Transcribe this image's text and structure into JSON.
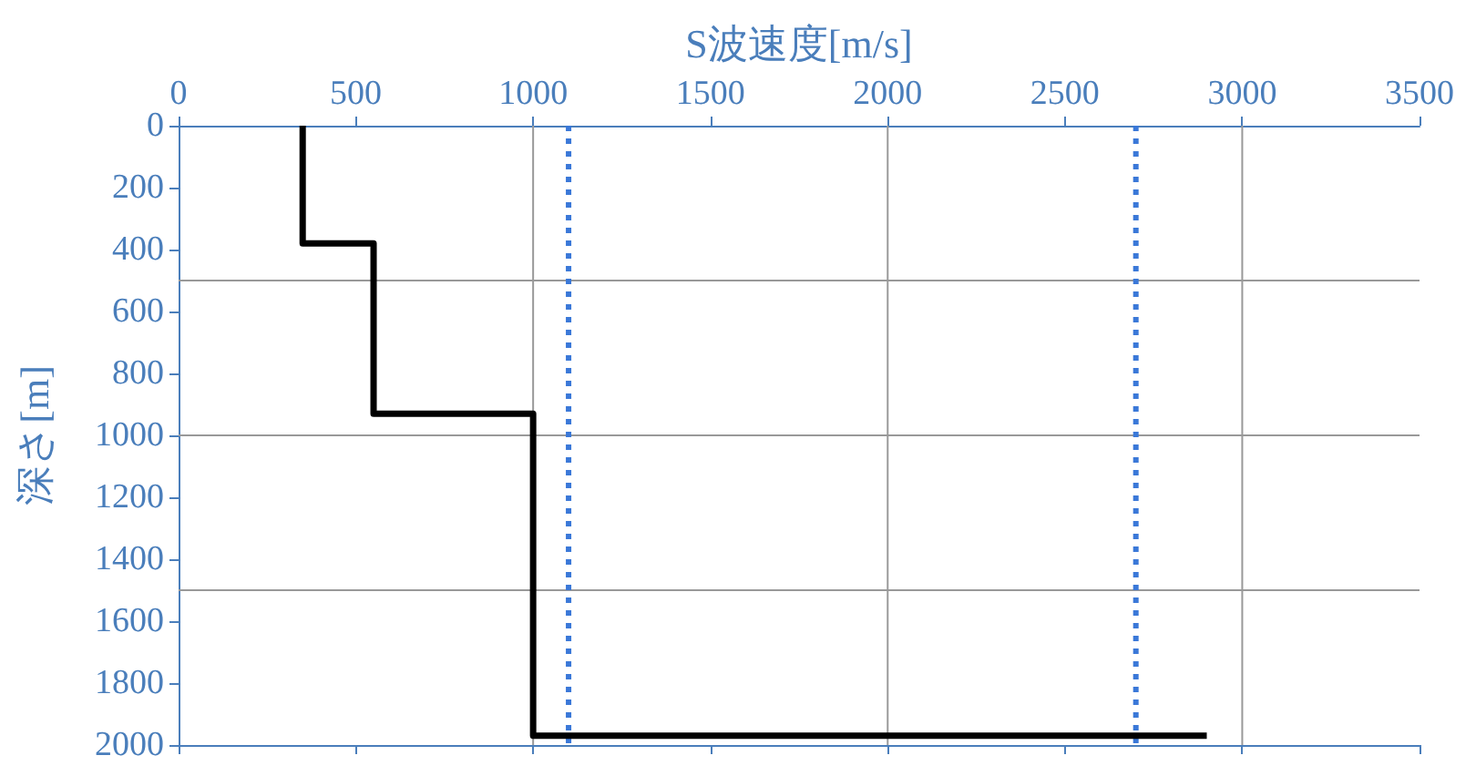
{
  "chart_data": {
    "type": "line",
    "xlabel": "S波速度[m/s]",
    "ylabel": "深さ[m]",
    "series": [
      {
        "color": "#000000",
        "x": [
          350,
          350,
          550,
          550,
          1000,
          1000,
          2900
        ],
        "values": [
          0,
          380,
          380,
          930,
          930,
          1970,
          1970
        ]
      }
    ],
    "xlim": [
      0,
      3500
    ],
    "xticks": [
      0,
      500,
      1000,
      1500,
      2000,
      2500,
      3000,
      3500
    ],
    "ylim": [
      2000,
      0
    ],
    "yticks": [
      0,
      200,
      400,
      600,
      800,
      1000,
      1200,
      1400,
      1600,
      1800,
      2000
    ],
    "ref_lines": [
      {
        "axis": "x",
        "value": 1100,
        "color": "#3a78d8",
        "line_style": "dotted"
      },
      {
        "axis": "x",
        "value": 2700,
        "color": "#3a78d8",
        "line_style": "dotted"
      },
      {
        "axis": "x",
        "value": 1000,
        "color": "#999999",
        "line_style": "solid"
      },
      {
        "axis": "x",
        "value": 2000,
        "color": "#999999",
        "line_style": "solid"
      },
      {
        "axis": "x",
        "value": 3000,
        "color": "#999999",
        "line_style": "solid"
      },
      {
        "axis": "y",
        "value": 500,
        "color": "#999999",
        "line_style": "solid"
      },
      {
        "axis": "y",
        "value": 1000,
        "color": "#999999",
        "line_style": "solid"
      },
      {
        "axis": "y",
        "value": 1500,
        "color": "#999999",
        "line_style": "solid"
      }
    ],
    "marker": "none",
    "line_style": "solid",
    "grid": false
  }
}
